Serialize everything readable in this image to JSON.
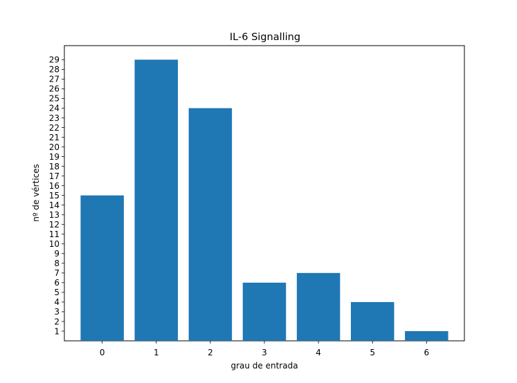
{
  "chart_data": {
    "type": "bar",
    "title": "IL-6 Signalling",
    "xlabel": "grau de entrada",
    "ylabel": "nº de vértices",
    "categories": [
      "0",
      "1",
      "2",
      "3",
      "4",
      "5",
      "6"
    ],
    "x": [
      0,
      1,
      2,
      3,
      4,
      5,
      6
    ],
    "values": [
      15,
      29,
      24,
      6,
      7,
      4,
      1
    ],
    "xlim": [
      -0.7,
      6.7
    ],
    "ylim": [
      0,
      30.45
    ],
    "yticks": [
      1,
      2,
      3,
      4,
      5,
      6,
      7,
      8,
      9,
      10,
      11,
      12,
      13,
      14,
      15,
      16,
      17,
      18,
      19,
      20,
      21,
      22,
      23,
      24,
      25,
      26,
      27,
      28,
      29
    ],
    "bar_color": "#1f77b4",
    "grid": false,
    "legend": "none"
  }
}
